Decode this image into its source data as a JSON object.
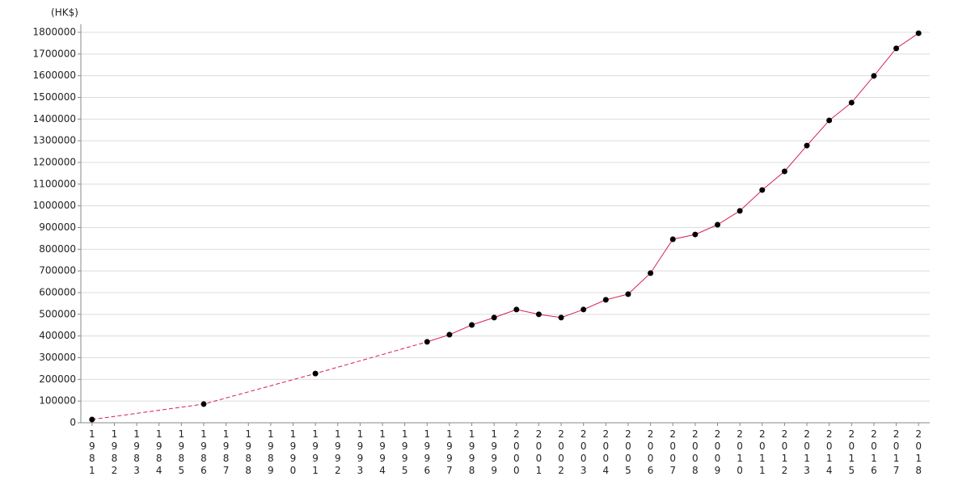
{
  "chart_data": {
    "type": "line",
    "y_label": "(HK$)",
    "categories": [
      "1981",
      "1982",
      "1983",
      "1984",
      "1985",
      "1986",
      "1987",
      "1988",
      "1989",
      "1990",
      "1991",
      "1992",
      "1993",
      "1994",
      "1995",
      "1996",
      "1997",
      "1998",
      "1999",
      "2000",
      "2001",
      "2002",
      "2003",
      "2004",
      "2005",
      "2006",
      "2007",
      "2008",
      "2009",
      "2010",
      "2011",
      "2012",
      "2013",
      "2014",
      "2015",
      "2016",
      "2017",
      "2018"
    ],
    "series": [
      {
        "color": "#d6204e",
        "marker_color": "#000000",
        "values": [
          15000,
          null,
          null,
          null,
          null,
          86000,
          null,
          null,
          null,
          null,
          227000,
          null,
          null,
          null,
          null,
          373000,
          406000,
          451000,
          485000,
          522000,
          500000,
          485000,
          522000,
          567000,
          593000,
          690000,
          846000,
          868000,
          913000,
          977000,
          1073000,
          1159000,
          1278000,
          1394000,
          1476000,
          1599000,
          1726000,
          1796000
        ]
      }
    ],
    "ylim": [
      0,
      1800000
    ],
    "yticks": [
      0,
      100000,
      200000,
      300000,
      400000,
      500000,
      600000,
      700000,
      800000,
      900000,
      1000000,
      1100000,
      1200000,
      1300000,
      1400000,
      1500000,
      1600000,
      1700000,
      1800000
    ],
    "grid": true
  }
}
